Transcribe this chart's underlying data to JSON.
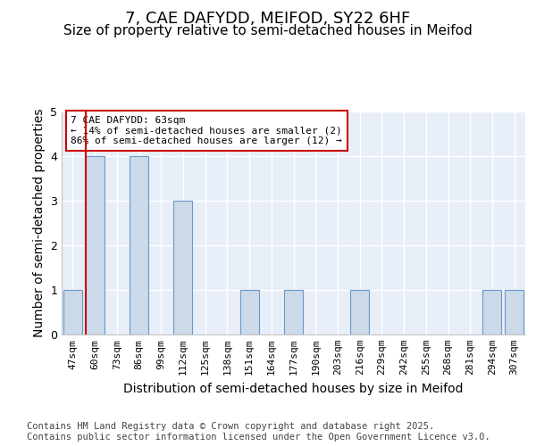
{
  "title": "7, CAE DAFYDD, MEIFOD, SY22 6HF",
  "subtitle": "Size of property relative to semi-detached houses in Meifod",
  "xlabel": "Distribution of semi-detached houses by size in Meifod",
  "ylabel": "Number of semi-detached properties",
  "categories": [
    "47sqm",
    "60sqm",
    "73sqm",
    "86sqm",
    "99sqm",
    "112sqm",
    "125sqm",
    "138sqm",
    "151sqm",
    "164sqm",
    "177sqm",
    "190sqm",
    "203sqm",
    "216sqm",
    "229sqm",
    "242sqm",
    "255sqm",
    "268sqm",
    "281sqm",
    "294sqm",
    "307sqm"
  ],
  "values": [
    1,
    4,
    0,
    4,
    0,
    3,
    0,
    0,
    1,
    0,
    1,
    0,
    0,
    1,
    0,
    0,
    0,
    0,
    0,
    1,
    1
  ],
  "red_line_index": 1,
  "bar_color": "#ccd9e8",
  "bar_edge_color": "#6699cc",
  "annotation_text": "7 CAE DAFYDD: 63sqm\n← 14% of semi-detached houses are smaller (2)\n86% of semi-detached houses are larger (12) →",
  "annotation_box_color": "#ffffff",
  "annotation_box_edge_color": "#cc0000",
  "red_line_color": "#cc0000",
  "ylim": [
    0,
    5
  ],
  "yticks": [
    0,
    1,
    2,
    3,
    4,
    5
  ],
  "footer": "Contains HM Land Registry data © Crown copyright and database right 2025.\nContains public sector information licensed under the Open Government Licence v3.0.",
  "bg_color": "#ffffff",
  "plot_bg_color": "#e8eef8",
  "grid_color": "#ffffff",
  "title_fontsize": 13,
  "subtitle_fontsize": 11,
  "label_fontsize": 10,
  "tick_fontsize": 8,
  "footer_fontsize": 7.5
}
